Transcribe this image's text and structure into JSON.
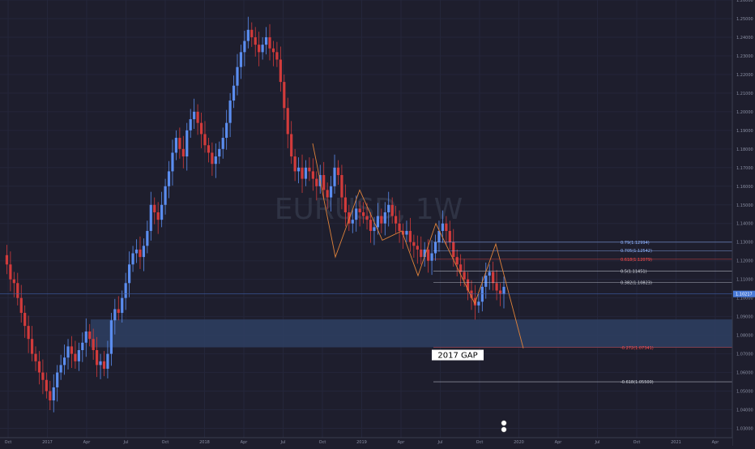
{
  "chart_data": {
    "type": "candlestick",
    "symbol_watermark": "EURUSD, 1W",
    "timeframe": "1W",
    "y_range": [
      1.025,
      1.26
    ],
    "y_ticks": [
      "1.26000",
      "1.25000",
      "1.24000",
      "1.23000",
      "1.22000",
      "1.21000",
      "1.20000",
      "1.19000",
      "1.18000",
      "1.17000",
      "1.16000",
      "1.15000",
      "1.14000",
      "1.13000",
      "1.12000",
      "1.11000",
      "1.10000",
      "1.09000",
      "1.08000",
      "1.07000",
      "1.06000",
      "1.05000",
      "1.04000",
      "1.03000"
    ],
    "x_labels": [
      "Oct",
      "2017",
      "Apr",
      "Jul",
      "Oct",
      "2018",
      "Apr",
      "Jul",
      "Oct",
      "2019",
      "Apr",
      "Jul",
      "Oct",
      "2020",
      "Apr",
      "Jul",
      "Oct",
      "2021",
      "Apr"
    ],
    "last_price": "1.10217",
    "gap_zone": {
      "label": "2017 GAP",
      "low": 1.0735,
      "high": 1.0885
    },
    "fib_levels": [
      {
        "label": "0.79(1.12994)",
        "value": 1.12994,
        "color": "#8fb3ff"
      },
      {
        "label": "0.705(1.12542)",
        "value": 1.12542,
        "color": "#8fb3ff"
      },
      {
        "label": "0.618(1.12079)",
        "value": 1.12079,
        "color": "#ff4d4d"
      },
      {
        "label": "0.5(1.11451)",
        "value": 1.11451,
        "color": "#cfd3dc"
      },
      {
        "label": "0.382(1.10823)",
        "value": 1.10823,
        "color": "#cfd3dc"
      },
      {
        "label": "-0.272(1.07341)",
        "value": 1.07341,
        "color": "#ff4d4d"
      },
      {
        "label": "-0.618(1.05500)",
        "value": 1.055,
        "color": "#cfd3dc"
      }
    ],
    "series_path": [
      1.123,
      1.118,
      1.11,
      1.108,
      1.1,
      1.092,
      1.085,
      1.078,
      1.07,
      1.066,
      1.06,
      1.056,
      1.05,
      1.045,
      1.052,
      1.06,
      1.064,
      1.068,
      1.074,
      1.07,
      1.066,
      1.072,
      1.076,
      1.082,
      1.078,
      1.072,
      1.064,
      1.066,
      1.062,
      1.07,
      1.088,
      1.094,
      1.092,
      1.1,
      1.108,
      1.118,
      1.124,
      1.126,
      1.122,
      1.128,
      1.136,
      1.15,
      1.146,
      1.142,
      1.15,
      1.16,
      1.168,
      1.178,
      1.186,
      1.18,
      1.176,
      1.19,
      1.196,
      1.2,
      1.194,
      1.188,
      1.182,
      1.178,
      1.172,
      1.176,
      1.18,
      1.186,
      1.194,
      1.206,
      1.214,
      1.224,
      1.232,
      1.238,
      1.244,
      1.24,
      1.236,
      1.232,
      1.236,
      1.24,
      1.234,
      1.232,
      1.228,
      1.216,
      1.202,
      1.188,
      1.176,
      1.168,
      1.17,
      1.164,
      1.17,
      1.168,
      1.164,
      1.16,
      1.166,
      1.158,
      1.154,
      1.16,
      1.17,
      1.166,
      1.154,
      1.146,
      1.14,
      1.142,
      1.148,
      1.146,
      1.144,
      1.142,
      1.136,
      1.138,
      1.144,
      1.14,
      1.146,
      1.15,
      1.144,
      1.14,
      1.136,
      1.134,
      1.136,
      1.13,
      1.128,
      1.126,
      1.122,
      1.126,
      1.12,
      1.124,
      1.13,
      1.136,
      1.14,
      1.136,
      1.13,
      1.122,
      1.118,
      1.114,
      1.11,
      1.104,
      1.1,
      1.096,
      1.098,
      1.106,
      1.112,
      1.114,
      1.108,
      1.104,
      1.102,
      1.106
    ]
  }
}
